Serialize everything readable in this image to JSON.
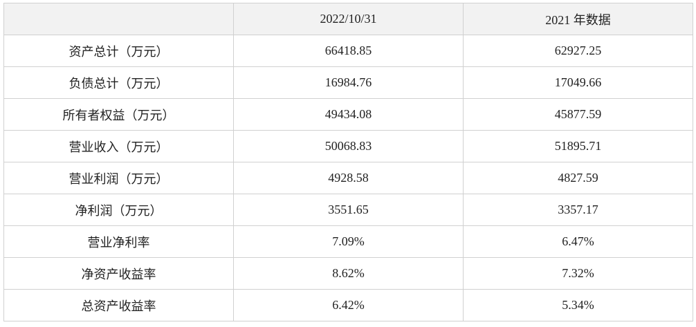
{
  "table": {
    "columns": [
      "2022/10/31",
      "2021 年数据"
    ],
    "rows": [
      [
        "资产总计（万元）",
        "66418.85",
        "62927.25"
      ],
      [
        "负债总计（万元）",
        "16984.76",
        "17049.66"
      ],
      [
        "所有者权益（万元）",
        "49434.08",
        "45877.59"
      ],
      [
        "营业收入（万元）",
        "50068.83",
        "51895.71"
      ],
      [
        "营业利润（万元）",
        "4928.58",
        "4827.59"
      ],
      [
        "净利润（万元）",
        "3551.65",
        "3357.17"
      ],
      [
        "营业净利率",
        "7.09%",
        "6.47%"
      ],
      [
        "净资产收益率",
        "8.62%",
        "7.32%"
      ],
      [
        "总资产收益率",
        "6.42%",
        "5.34%"
      ]
    ]
  }
}
